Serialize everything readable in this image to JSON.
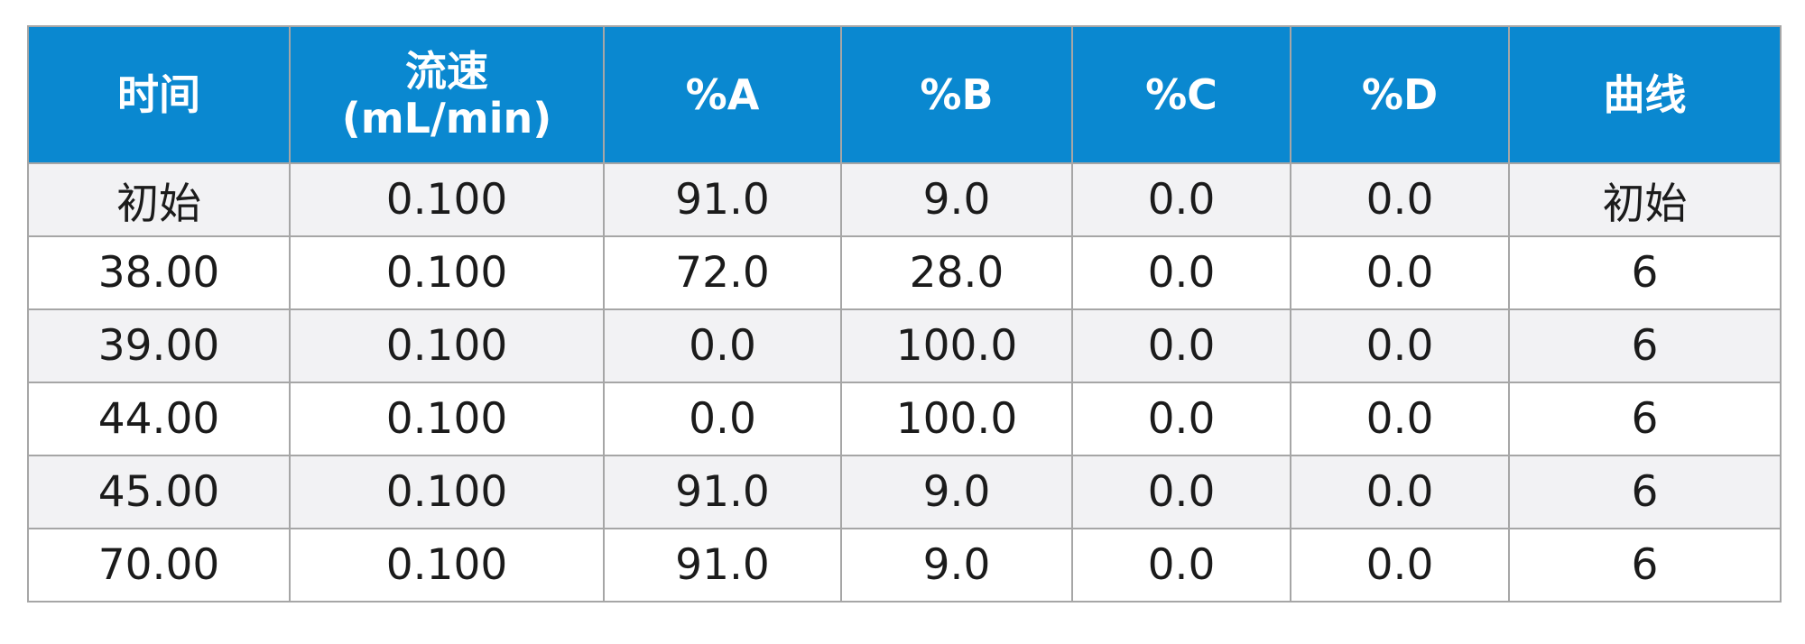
{
  "table": {
    "headers": [
      {
        "lines": [
          "时间"
        ]
      },
      {
        "lines": [
          "流速",
          "(mL/min)"
        ]
      },
      {
        "lines": [
          "%A"
        ]
      },
      {
        "lines": [
          "%B"
        ]
      },
      {
        "lines": [
          "%C"
        ]
      },
      {
        "lines": [
          "%D"
        ]
      },
      {
        "lines": [
          "曲线"
        ]
      }
    ],
    "rows": [
      [
        "初始",
        "0.100",
        "91.0",
        "9.0",
        "0.0",
        "0.0",
        "初始"
      ],
      [
        "38.00",
        "0.100",
        "72.0",
        "28.0",
        "0.0",
        "0.0",
        "6"
      ],
      [
        "39.00",
        "0.100",
        "0.0",
        "100.0",
        "0.0",
        "0.0",
        "6"
      ],
      [
        "44.00",
        "0.100",
        "0.0",
        "100.0",
        "0.0",
        "0.0",
        "6"
      ],
      [
        "45.00",
        "0.100",
        "91.0",
        "9.0",
        "0.0",
        "0.0",
        "6"
      ],
      [
        "70.00",
        "0.100",
        "91.0",
        "9.0",
        "0.0",
        "0.0",
        "6"
      ]
    ]
  },
  "colors": {
    "header_bg": "#0a88d0",
    "header_text": "#ffffff",
    "stripe_bg": "#f2f2f4",
    "border": "#a6a6a6"
  }
}
